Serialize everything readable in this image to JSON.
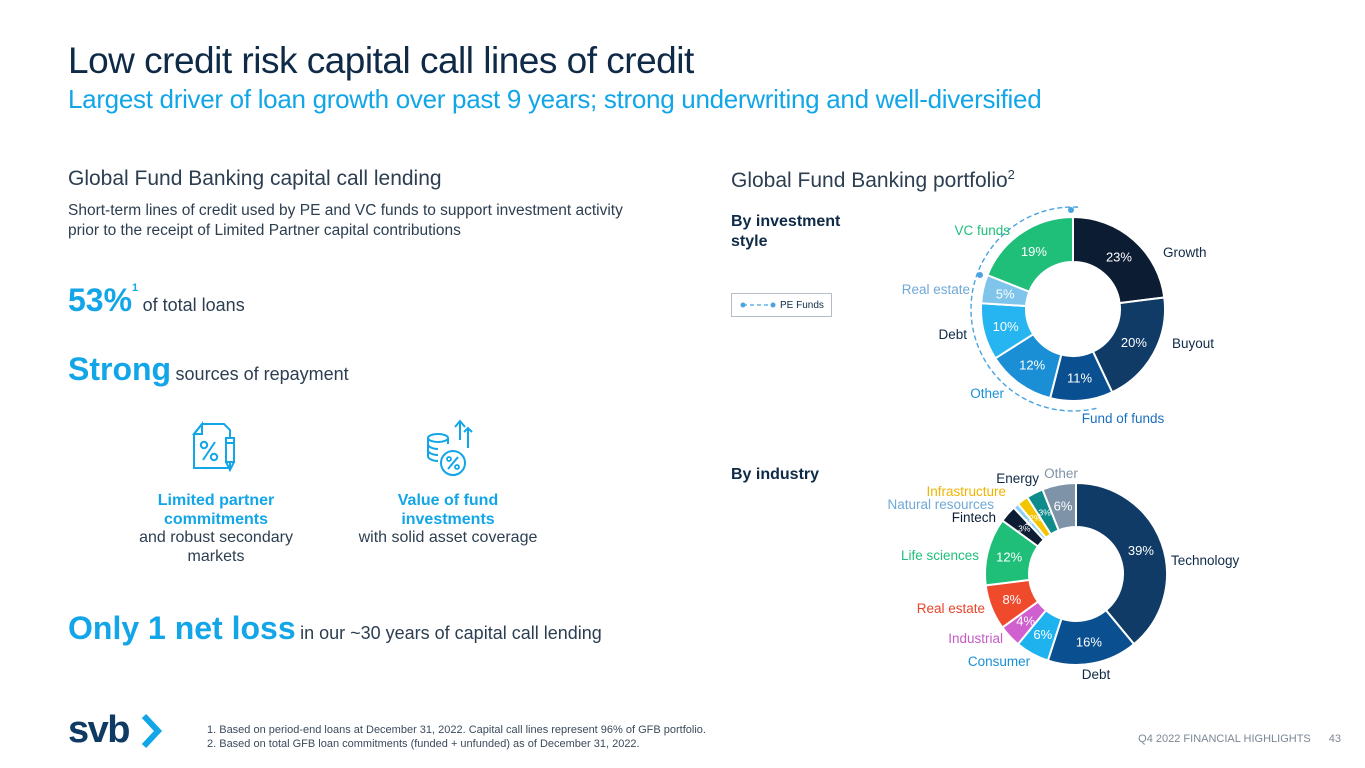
{
  "title": "Low credit risk capital call lines of credit",
  "subtitle": "Largest driver of loan growth over past 9 years; strong underwriting and well-diversified",
  "left": {
    "heading": "Global Fund Banking capital call lending",
    "description": "Short-term lines of credit used by PE and VC funds to support investment activity prior to the receipt of Limited Partner capital contributions",
    "stat1_value": "53%",
    "stat1_sup": "1",
    "stat1_text": "of total loans",
    "stat2_value": "Strong",
    "stat2_text": "sources of repayment",
    "icon1": {
      "icon": "document-percent-icon",
      "bold": "Limited partner commitments",
      "normal": "and robust secondary markets"
    },
    "icon2": {
      "icon": "coins-percent-growth-icon",
      "bold": "Value of fund investments",
      "normal": "with solid asset coverage"
    },
    "stat3_value": "Only 1 net loss",
    "stat3_text": "in our ~30 years of capital call lending"
  },
  "right": {
    "heading": "Global Fund Banking portfolio",
    "heading_sup": "2",
    "by_style_label": "By investment style",
    "legend_label": "PE Funds",
    "by_industry_label": "By industry"
  },
  "chart_data": [
    {
      "type": "pie",
      "variant": "donut",
      "name": "By investment style",
      "categories": [
        "Growth",
        "Buyout",
        "Fund of funds",
        "Other",
        "Debt",
        "Real estate",
        "VC funds"
      ],
      "values": [
        23,
        20,
        11,
        12,
        10,
        5,
        19
      ],
      "labels": [
        "23%",
        "20%",
        "11%",
        "12%",
        "10%",
        "5%",
        "19%"
      ],
      "colors": [
        "#0b1c33",
        "#0f3b66",
        "#0a4f8f",
        "#1a8fd6",
        "#26b5f0",
        "#7fc4ea",
        "#1fbf7a"
      ],
      "label_colors": [
        "#0e2a47",
        "#0e2a47",
        "#1a6fbf",
        "#1a8fd6",
        "#0e2a47",
        "#6fa8d8",
        "#1fbf7a"
      ],
      "legend": [
        "PE Funds"
      ],
      "legend_placement": "left"
    },
    {
      "type": "pie",
      "variant": "donut",
      "name": "By industry",
      "categories": [
        "Technology",
        "Debt",
        "Consumer",
        "Industrial",
        "Real estate",
        "Life sciences",
        "Fintech",
        "Natural resources",
        "Infrastructure",
        "Energy",
        "Other"
      ],
      "values": [
        39,
        16,
        6,
        4,
        8,
        12,
        3,
        1,
        2,
        3,
        6
      ],
      "labels": [
        "39%",
        "16%",
        "6%",
        "4%",
        "8%",
        "12%",
        "3%",
        "1%",
        "2%",
        "3%",
        "6%"
      ],
      "colors": [
        "#0f3b66",
        "#0a4f8f",
        "#1eb3ef",
        "#d05fcf",
        "#f04a2c",
        "#1fbf7a",
        "#0b1c33",
        "#8fd0f2",
        "#f2c500",
        "#0e8c8c",
        "#7f93a8"
      ],
      "label_colors": [
        "#0e2a47",
        "#0e2a47",
        "#1a8fd6",
        "#c55cc4",
        "#e8452b",
        "#1fbf7a",
        "#0b1c33",
        "#6fa8d8",
        "#f0b400",
        "#0e2a47",
        "#7f93a8"
      ]
    }
  ],
  "footnotes": [
    "1.  Based on period-end loans at December 31, 2022. Capital call lines represent 96% of GFB portfolio.",
    "2.  Based on total GFB loan commitments (funded + unfunded) as of December 31, 2022."
  ],
  "footer": {
    "text": "Q4 2022 FINANCIAL HIGHLIGHTS",
    "page": "43"
  },
  "logo_text": "svb"
}
